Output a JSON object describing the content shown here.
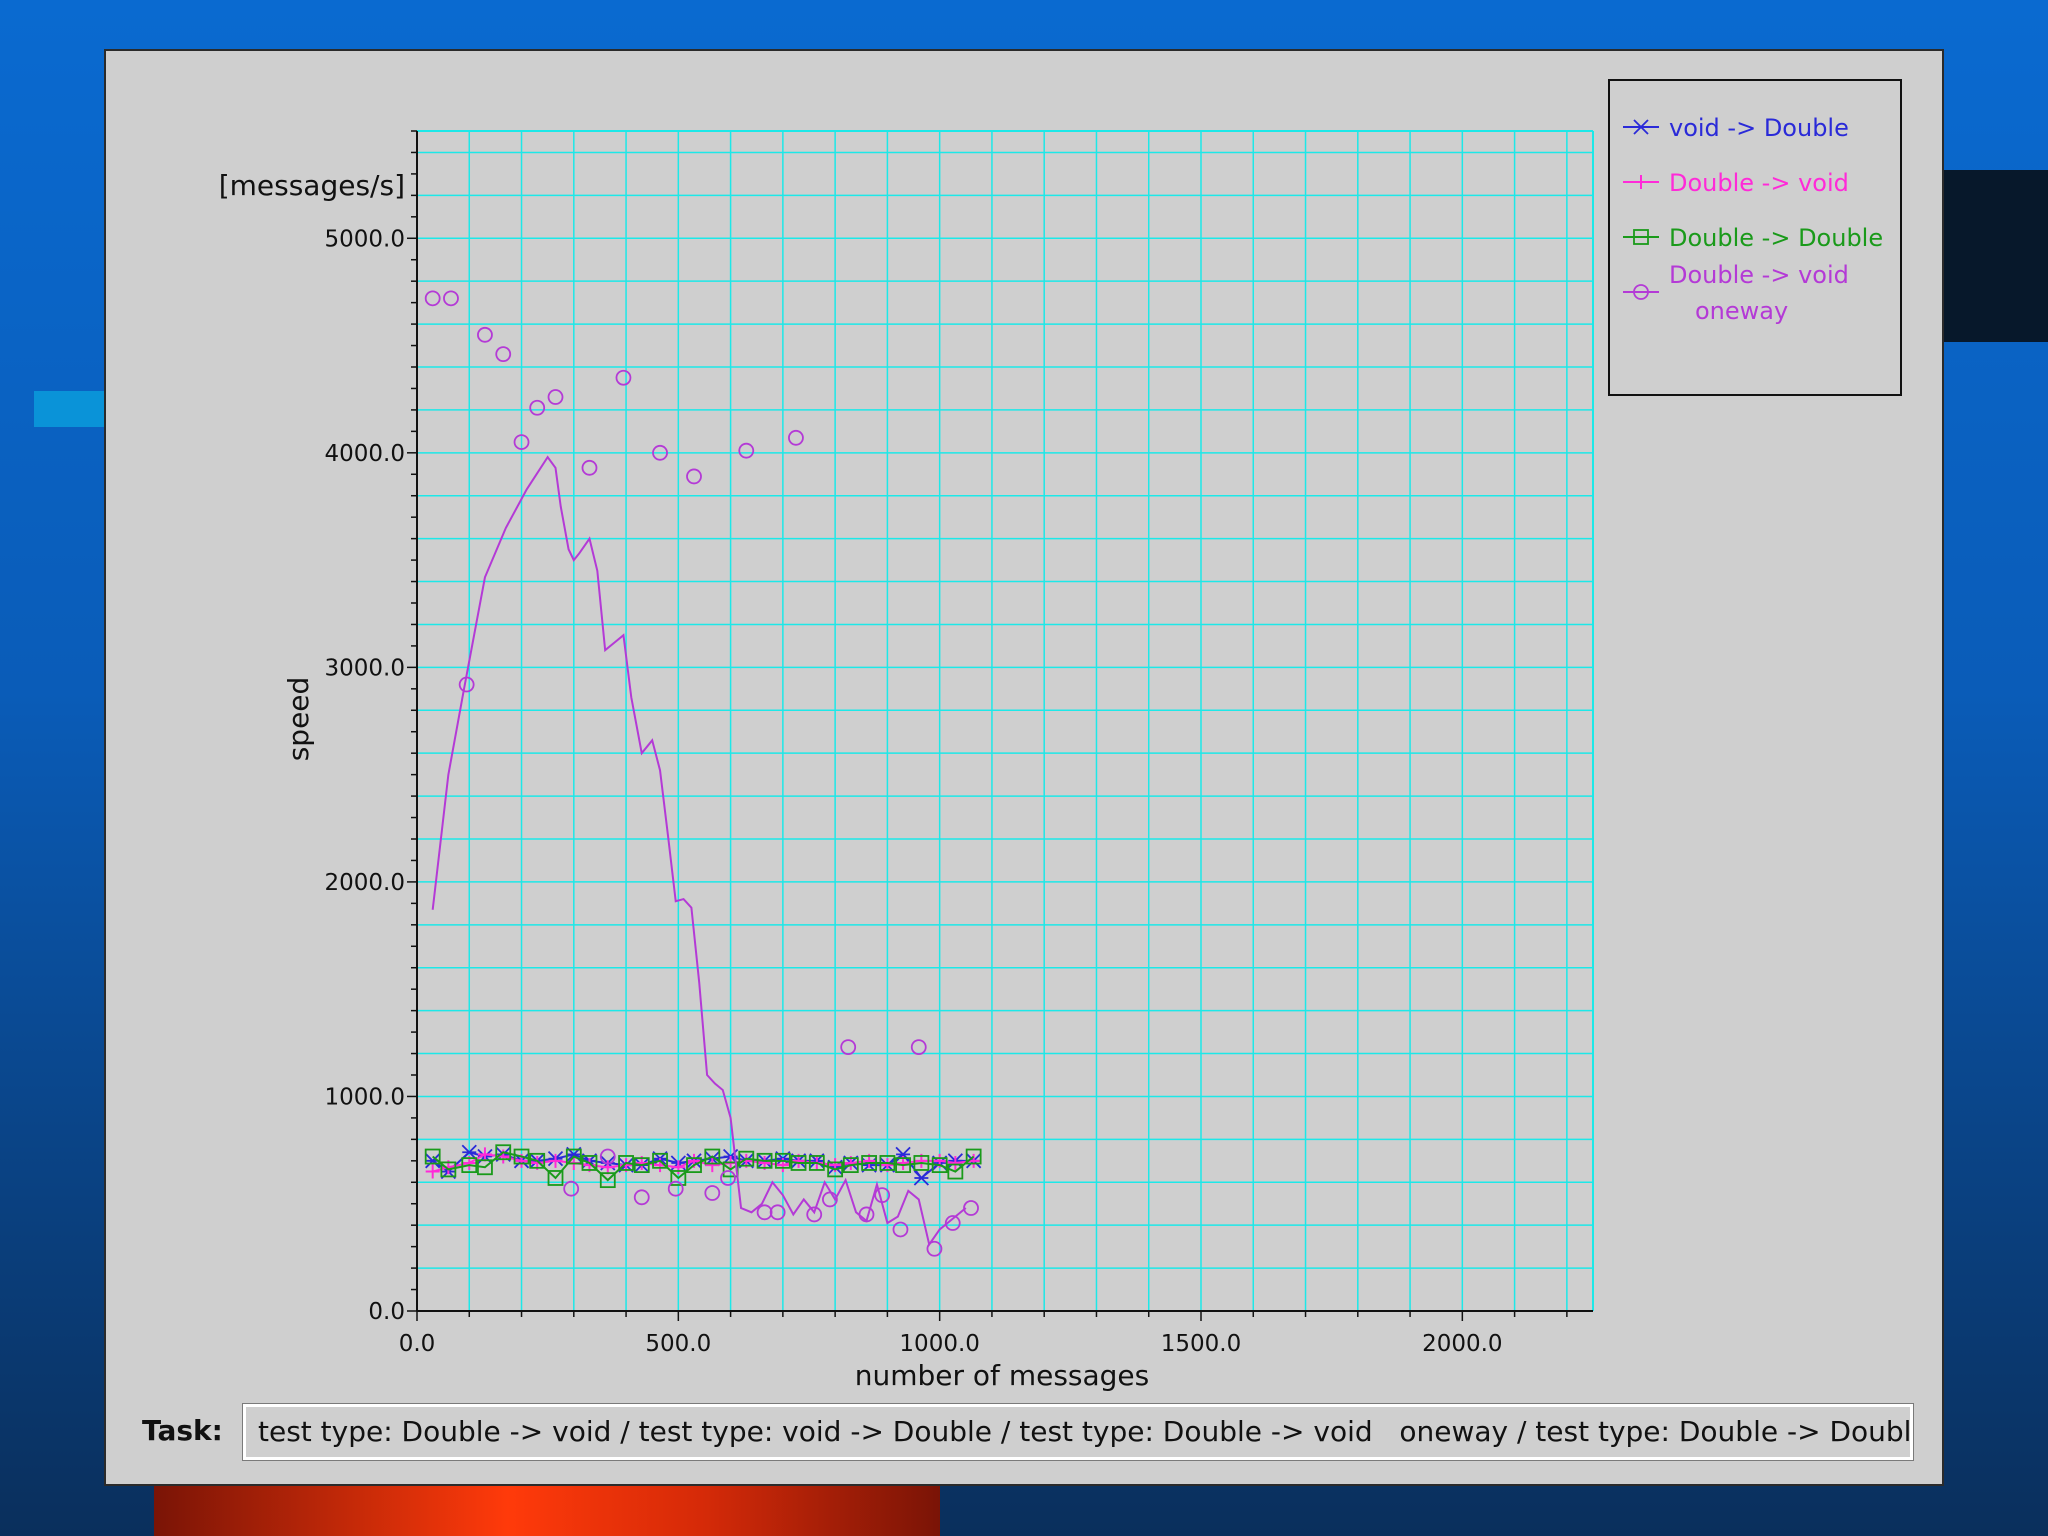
{
  "chart_data": {
    "type": "line",
    "xlabel": "number of messages",
    "ylabel": "speed",
    "yunit": "[messages/s]",
    "xlim": [
      0,
      2250
    ],
    "ylim": [
      0,
      5500
    ],
    "xticks": [
      0,
      500,
      1000,
      1500,
      2000
    ],
    "xtick_labels": [
      "0.0",
      "500.0",
      "1000.0",
      "1500.0",
      "2000.0"
    ],
    "yticks": [
      0,
      1000,
      2000,
      3000,
      4000,
      5000
    ],
    "ytick_labels": [
      "0.0",
      "1000.0",
      "2000.0",
      "3000.0",
      "4000.0",
      "5000.0"
    ],
    "grid": true,
    "legend_position": "top-right",
    "series": [
      {
        "name": "void -> Double",
        "color": "#2a2ad8",
        "marker": "asterisk",
        "x": [
          30,
          60,
          100,
          130,
          165,
          200,
          230,
          265,
          300,
          330,
          365,
          400,
          430,
          465,
          500,
          530,
          565,
          600,
          630,
          665,
          700,
          730,
          765,
          800,
          830,
          865,
          900,
          930,
          965,
          1000,
          1030,
          1065
        ],
        "y": [
          700,
          650,
          740,
          720,
          730,
          700,
          700,
          710,
          730,
          700,
          690,
          680,
          680,
          710,
          690,
          700,
          710,
          720,
          700,
          700,
          710,
          700,
          700,
          670,
          690,
          680,
          680,
          730,
          620,
          690,
          700,
          700
        ]
      },
      {
        "name": "Double -> void",
        "color": "#ff2ad8",
        "marker": "plus",
        "x": [
          30,
          60,
          100,
          130,
          165,
          200,
          230,
          265,
          300,
          330,
          365,
          400,
          430,
          465,
          500,
          530,
          565,
          600,
          630,
          665,
          700,
          730,
          765,
          800,
          830,
          865,
          900,
          930,
          965,
          1000,
          1030,
          1065
        ],
        "y": [
          650,
          670,
          690,
          730,
          720,
          700,
          690,
          700,
          690,
          680,
          670,
          680,
          690,
          680,
          670,
          700,
          680,
          690,
          700,
          690,
          680,
          700,
          690,
          680,
          690,
          700,
          680,
          690,
          700,
          700,
          690,
          700
        ]
      },
      {
        "name": "Double -> Double",
        "color": "#1a9a1a",
        "marker": "square",
        "x": [
          30,
          60,
          100,
          130,
          165,
          200,
          230,
          265,
          300,
          330,
          365,
          400,
          430,
          465,
          500,
          530,
          565,
          600,
          630,
          665,
          700,
          730,
          765,
          800,
          830,
          865,
          900,
          930,
          965,
          1000,
          1030,
          1065
        ],
        "y": [
          720,
          660,
          680,
          670,
          740,
          720,
          700,
          620,
          720,
          690,
          610,
          690,
          680,
          700,
          620,
          680,
          720,
          660,
          710,
          700,
          700,
          690,
          690,
          660,
          680,
          690,
          690,
          680,
          690,
          680,
          650,
          720
        ]
      },
      {
        "name": "Double -> void oneway",
        "name_lines": [
          "Double -> void",
          "oneway"
        ],
        "color": "#b43ad6",
        "marker": "circle",
        "x": [
          30,
          65,
          95,
          130,
          165,
          200,
          230,
          265,
          295,
          330,
          365,
          395,
          430,
          465,
          495,
          530,
          565,
          595,
          630,
          665,
          690,
          725,
          760,
          790,
          825,
          860,
          890,
          925,
          960,
          990,
          1025,
          1060
        ],
        "y": [
          4720,
          4720,
          2920,
          4550,
          4460,
          4050,
          4210,
          4260,
          570,
          3930,
          720,
          4350,
          530,
          4000,
          570,
          3890,
          550,
          620,
          4010,
          460,
          460,
          4070,
          450,
          520,
          1230,
          450,
          540,
          380,
          1230,
          290,
          410,
          480
        ],
        "trend": {
          "x": [
            30,
            60,
            90,
            130,
            170,
            210,
            250,
            265,
            275,
            290,
            300,
            310,
            330,
            345,
            360,
            380,
            395,
            410,
            430,
            450,
            465,
            480,
            495,
            510,
            525,
            540,
            555,
            570,
            585,
            600,
            620,
            640,
            660,
            680,
            700,
            720,
            740,
            760,
            780,
            800,
            820,
            840,
            860,
            880,
            900,
            920,
            940,
            960,
            980,
            1000,
            1020,
            1050
          ],
          "y": [
            1870,
            2500,
            2900,
            3420,
            3650,
            3830,
            3980,
            3930,
            3750,
            3550,
            3500,
            3530,
            3600,
            3450,
            3080,
            3120,
            3150,
            2860,
            2600,
            2660,
            2520,
            2220,
            1910,
            1920,
            1880,
            1530,
            1100,
            1060,
            1030,
            900,
            480,
            460,
            500,
            600,
            540,
            450,
            520,
            460,
            600,
            520,
            610,
            460,
            420,
            590,
            410,
            440,
            560,
            520,
            310,
            380,
            420,
            480
          ]
        }
      }
    ],
    "task_label": "Task:",
    "task_value": "test type: Double -> void / test type: void -> Double / test type: Double -> void   oneway / test type: Double -> Double"
  }
}
